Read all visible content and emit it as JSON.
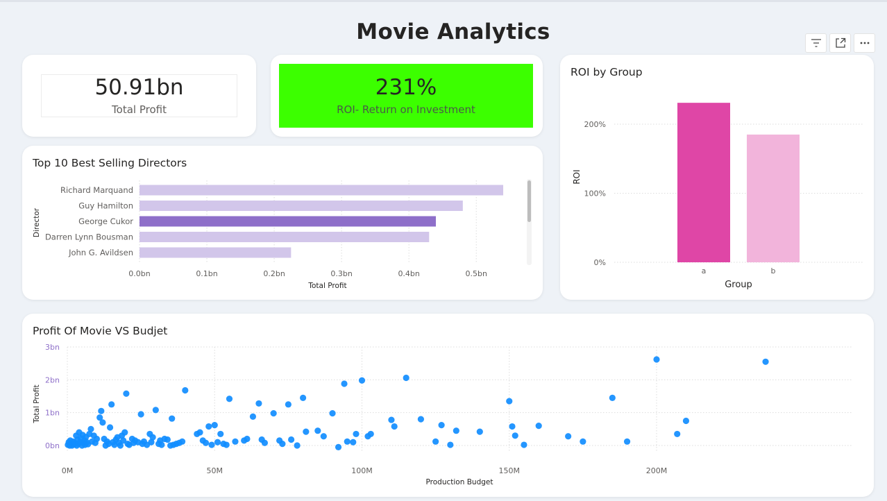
{
  "page": {
    "title": "Movie Analytics"
  },
  "toolbar": {
    "icons": [
      "filter-icon",
      "focus-mode-icon",
      "more-options-icon"
    ]
  },
  "kpi_profit": {
    "value": "50.91bn",
    "label": "Total Profit"
  },
  "kpi_roi": {
    "value": "231%",
    "label": "ROI- Return on Investment",
    "bg_color": "#3cff00"
  },
  "directors_chart": {
    "title": "Top 10 Best Selling Directors"
  },
  "roi_chart": {
    "title": "ROI by Group"
  },
  "scatter_chart": {
    "title": "Profit Of Movie VS Budjet"
  },
  "chart_data": [
    {
      "type": "bar",
      "orientation": "horizontal",
      "title": "Top 10 Best Selling Directors",
      "xlabel": "Total Profit",
      "ylabel": "Director",
      "categories": [
        "Richard Marquand",
        "Guy Hamilton",
        "George Cukor",
        "Darren Lynn Bousman",
        "John G. Avildsen"
      ],
      "values": [
        0.54,
        0.48,
        0.44,
        0.43,
        0.225
      ],
      "highlighted": "George Cukor",
      "x_ticks": [
        "0.0bn",
        "0.1bn",
        "0.2bn",
        "0.3bn",
        "0.4bn",
        "0.5bn"
      ],
      "xlim": [
        0,
        0.575
      ],
      "bar_color": "#d2c6ea",
      "highlight_color": "#8e6fc9",
      "grid": true
    },
    {
      "type": "bar",
      "title": "ROI by Group",
      "xlabel": "Group",
      "ylabel": "ROI",
      "categories": [
        "a",
        "b"
      ],
      "values": [
        231,
        185
      ],
      "colors": [
        "#df46a6",
        "#f2b4db"
      ],
      "y_ticks": [
        "0%",
        "100%",
        "200%"
      ],
      "ylim": [
        0,
        250
      ],
      "grid": true
    },
    {
      "type": "scatter",
      "title": "Profit Of Movie VS Budjet",
      "xlabel": "Production Budget",
      "ylabel": "Total Profit",
      "x_ticks": [
        "0M",
        "50M",
        "100M",
        "150M",
        "200M"
      ],
      "y_ticks": [
        "0bn",
        "1bn",
        "2bn",
        "3bn"
      ],
      "xlim": [
        0,
        240
      ],
      "ylim": [
        0,
        3
      ],
      "color": "#118dff",
      "grid": true,
      "points": [
        [
          0.2,
          0.02
        ],
        [
          0.5,
          0.1
        ],
        [
          0.8,
          0.0
        ],
        [
          1.0,
          0.15
        ],
        [
          1.3,
          0.05
        ],
        [
          1.6,
          0.0
        ],
        [
          2.0,
          0.12
        ],
        [
          2.3,
          0.03
        ],
        [
          2.6,
          0.08
        ],
        [
          3.0,
          0.3
        ],
        [
          3.2,
          0.0
        ],
        [
          3.5,
          0.18
        ],
        [
          3.8,
          0.05
        ],
        [
          4.0,
          0.4
        ],
        [
          4.3,
          0.1
        ],
        [
          4.6,
          0.22
        ],
        [
          5.0,
          0.0
        ],
        [
          5.2,
          0.32
        ],
        [
          5.5,
          0.08
        ],
        [
          5.8,
          0.15
        ],
        [
          6.0,
          0.02
        ],
        [
          6.3,
          0.26
        ],
        [
          6.6,
          0.1
        ],
        [
          7.0,
          0.04
        ],
        [
          7.5,
          0.35
        ],
        [
          8.0,
          0.5
        ],
        [
          8.4,
          0.12
        ],
        [
          9.0,
          0.3
        ],
        [
          9.5,
          0.08
        ],
        [
          10.0,
          0.2
        ],
        [
          11.0,
          0.85
        ],
        [
          11.5,
          1.05
        ],
        [
          12.0,
          0.7
        ],
        [
          12.5,
          0.2
        ],
        [
          13.0,
          0.0
        ],
        [
          13.5,
          0.12
        ],
        [
          14.0,
          0.05
        ],
        [
          14.5,
          0.55
        ],
        [
          15.0,
          1.25
        ],
        [
          15.5,
          0.1
        ],
        [
          16.0,
          0.02
        ],
        [
          16.5,
          0.18
        ],
        [
          17.0,
          0.25
        ],
        [
          17.5,
          0.08
        ],
        [
          18.0,
          0.0
        ],
        [
          18.5,
          0.3
        ],
        [
          19.0,
          0.15
        ],
        [
          19.5,
          0.4
        ],
        [
          20.0,
          1.58
        ],
        [
          20.5,
          0.05
        ],
        [
          21.0,
          0.02
        ],
        [
          22.0,
          0.2
        ],
        [
          22.5,
          0.08
        ],
        [
          23.0,
          0.15
        ],
        [
          24.0,
          0.1
        ],
        [
          25.0,
          0.95
        ],
        [
          25.5,
          0.05
        ],
        [
          26.0,
          0.12
        ],
        [
          27.0,
          0.02
        ],
        [
          28.0,
          0.35
        ],
        [
          28.5,
          0.1
        ],
        [
          29.0,
          0.25
        ],
        [
          30.0,
          1.08
        ],
        [
          31.0,
          0.05
        ],
        [
          31.5,
          0.15
        ],
        [
          32.0,
          0.02
        ],
        [
          33.0,
          0.2
        ],
        [
          34.0,
          0.18
        ],
        [
          35.0,
          0.0
        ],
        [
          35.5,
          0.82
        ],
        [
          36.0,
          0.02
        ],
        [
          37.0,
          0.05
        ],
        [
          38.0,
          0.08
        ],
        [
          39.0,
          0.12
        ],
        [
          40.0,
          1.68
        ],
        [
          44.0,
          0.35
        ],
        [
          45.0,
          0.4
        ],
        [
          46.0,
          0.15
        ],
        [
          47.0,
          0.08
        ],
        [
          48.0,
          0.58
        ],
        [
          49.0,
          0.02
        ],
        [
          50.0,
          0.62
        ],
        [
          51.0,
          0.1
        ],
        [
          52.0,
          0.35
        ],
        [
          53.0,
          0.05
        ],
        [
          54.0,
          0.02
        ],
        [
          55.0,
          1.42
        ],
        [
          57.0,
          0.12
        ],
        [
          60.0,
          0.15
        ],
        [
          61.0,
          0.2
        ],
        [
          63.0,
          0.88
        ],
        [
          65.0,
          1.28
        ],
        [
          66.0,
          0.18
        ],
        [
          67.0,
          0.08
        ],
        [
          70.0,
          0.98
        ],
        [
          72.0,
          0.15
        ],
        [
          73.0,
          0.05
        ],
        [
          75.0,
          1.25
        ],
        [
          76.0,
          0.18
        ],
        [
          78.0,
          0.0
        ],
        [
          80.0,
          1.45
        ],
        [
          81.0,
          0.42
        ],
        [
          85.0,
          0.45
        ],
        [
          87.0,
          0.28
        ],
        [
          90.0,
          0.98
        ],
        [
          92.0,
          -0.05
        ],
        [
          94.0,
          1.88
        ],
        [
          95.0,
          0.12
        ],
        [
          97.0,
          0.1
        ],
        [
          98.0,
          0.35
        ],
        [
          100.0,
          1.98
        ],
        [
          102.0,
          0.28
        ],
        [
          103.0,
          0.35
        ],
        [
          110.0,
          0.78
        ],
        [
          111.0,
          0.58
        ],
        [
          115.0,
          2.06
        ],
        [
          120.0,
          0.8
        ],
        [
          125.0,
          0.12
        ],
        [
          127.0,
          0.62
        ],
        [
          130.0,
          0.02
        ],
        [
          132.0,
          0.45
        ],
        [
          140.0,
          0.42
        ],
        [
          150.0,
          1.35
        ],
        [
          151.0,
          0.58
        ],
        [
          152.0,
          0.3
        ],
        [
          155.0,
          0.02
        ],
        [
          160.0,
          0.6
        ],
        [
          170.0,
          0.28
        ],
        [
          175.0,
          0.12
        ],
        [
          185.0,
          1.45
        ],
        [
          190.0,
          0.12
        ],
        [
          200.0,
          2.62
        ],
        [
          207.0,
          0.35
        ],
        [
          210.0,
          0.75
        ],
        [
          237.0,
          2.55
        ]
      ]
    }
  ]
}
